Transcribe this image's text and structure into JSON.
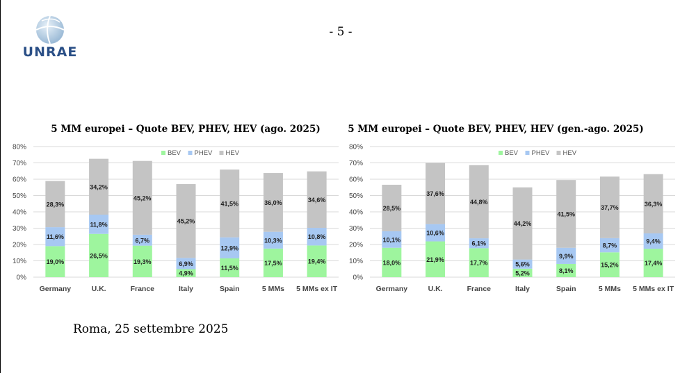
{
  "header": {
    "logo_text": "UNRAE",
    "page_number": "- 5 -"
  },
  "footer": {
    "text": "Roma, 25 settembre 2025"
  },
  "colors": {
    "BEV": "#9ef59e",
    "PHEV": "#a7c8f2",
    "HEV": "#c4c4c4",
    "grid": "#d9d9d9",
    "logo": "#2a4f86"
  },
  "chart_data": [
    {
      "type": "bar",
      "stacked": true,
      "title": "5 MM europei – Quote BEV, PHEV, HEV (ago. 2025)",
      "categories": [
        "Germany",
        "U.K.",
        "France",
        "Italy",
        "Spain",
        "5 MMs",
        "5 MMs ex IT"
      ],
      "series": [
        {
          "name": "BEV",
          "values": [
            19.0,
            26.5,
            19.3,
            4.9,
            11.5,
            17.5,
            19.4
          ]
        },
        {
          "name": "PHEV",
          "values": [
            11.6,
            11.8,
            6.7,
            6.9,
            12.9,
            10.3,
            10.8
          ]
        },
        {
          "name": "HEV",
          "values": [
            28.3,
            34.2,
            45.2,
            45.2,
            41.5,
            36.0,
            34.6
          ]
        }
      ],
      "data_labels": {
        "BEV": [
          "19,0%",
          "26,5%",
          "19,3%",
          "4,9%",
          "11,5%",
          "17,5%",
          "19,4%"
        ],
        "PHEV": [
          "11,6%",
          "11,8%",
          "6,7%",
          "6,9%",
          "12,9%",
          "10,3%",
          "10,8%"
        ],
        "HEV": [
          "28,3%",
          "34,2%",
          "45,2%",
          "45,2%",
          "41,5%",
          "36,0%",
          "34,6%"
        ]
      },
      "y_ticks": [
        "0%",
        "10%",
        "20%",
        "30%",
        "40%",
        "50%",
        "60%",
        "70%",
        "80%"
      ],
      "ylim": [
        0,
        80
      ],
      "grid": true,
      "legend": "top-center"
    },
    {
      "type": "bar",
      "stacked": true,
      "title": "5 MM europei – Quote BEV, PHEV, HEV (gen.-ago. 2025)",
      "categories": [
        "Germany",
        "U.K.",
        "France",
        "Italy",
        "Spain",
        "5 MMs",
        "5 MMs ex IT"
      ],
      "series": [
        {
          "name": "BEV",
          "values": [
            18.0,
            21.9,
            17.7,
            5.2,
            8.1,
            15.2,
            17.4
          ]
        },
        {
          "name": "PHEV",
          "values": [
            10.1,
            10.6,
            6.1,
            5.6,
            9.9,
            8.7,
            9.4
          ]
        },
        {
          "name": "HEV",
          "values": [
            28.5,
            37.6,
            44.8,
            44.2,
            41.5,
            37.7,
            36.3
          ]
        }
      ],
      "data_labels": {
        "BEV": [
          "18,0%",
          "21,9%",
          "17,7%",
          "5,2%",
          "8,1%",
          "15,2%",
          "17,4%"
        ],
        "PHEV": [
          "10,1%",
          "10,6%",
          "6,1%",
          "5,6%",
          "9,9%",
          "8,7%",
          "9,4%"
        ],
        "HEV": [
          "28,5%",
          "37,6%",
          "44,8%",
          "44,2%",
          "41,5%",
          "37,7%",
          "36,3%"
        ]
      },
      "y_ticks": [
        "0%",
        "10%",
        "20%",
        "30%",
        "40%",
        "50%",
        "60%",
        "70%",
        "80%"
      ],
      "ylim": [
        0,
        80
      ],
      "grid": true,
      "legend": "top-center"
    }
  ]
}
